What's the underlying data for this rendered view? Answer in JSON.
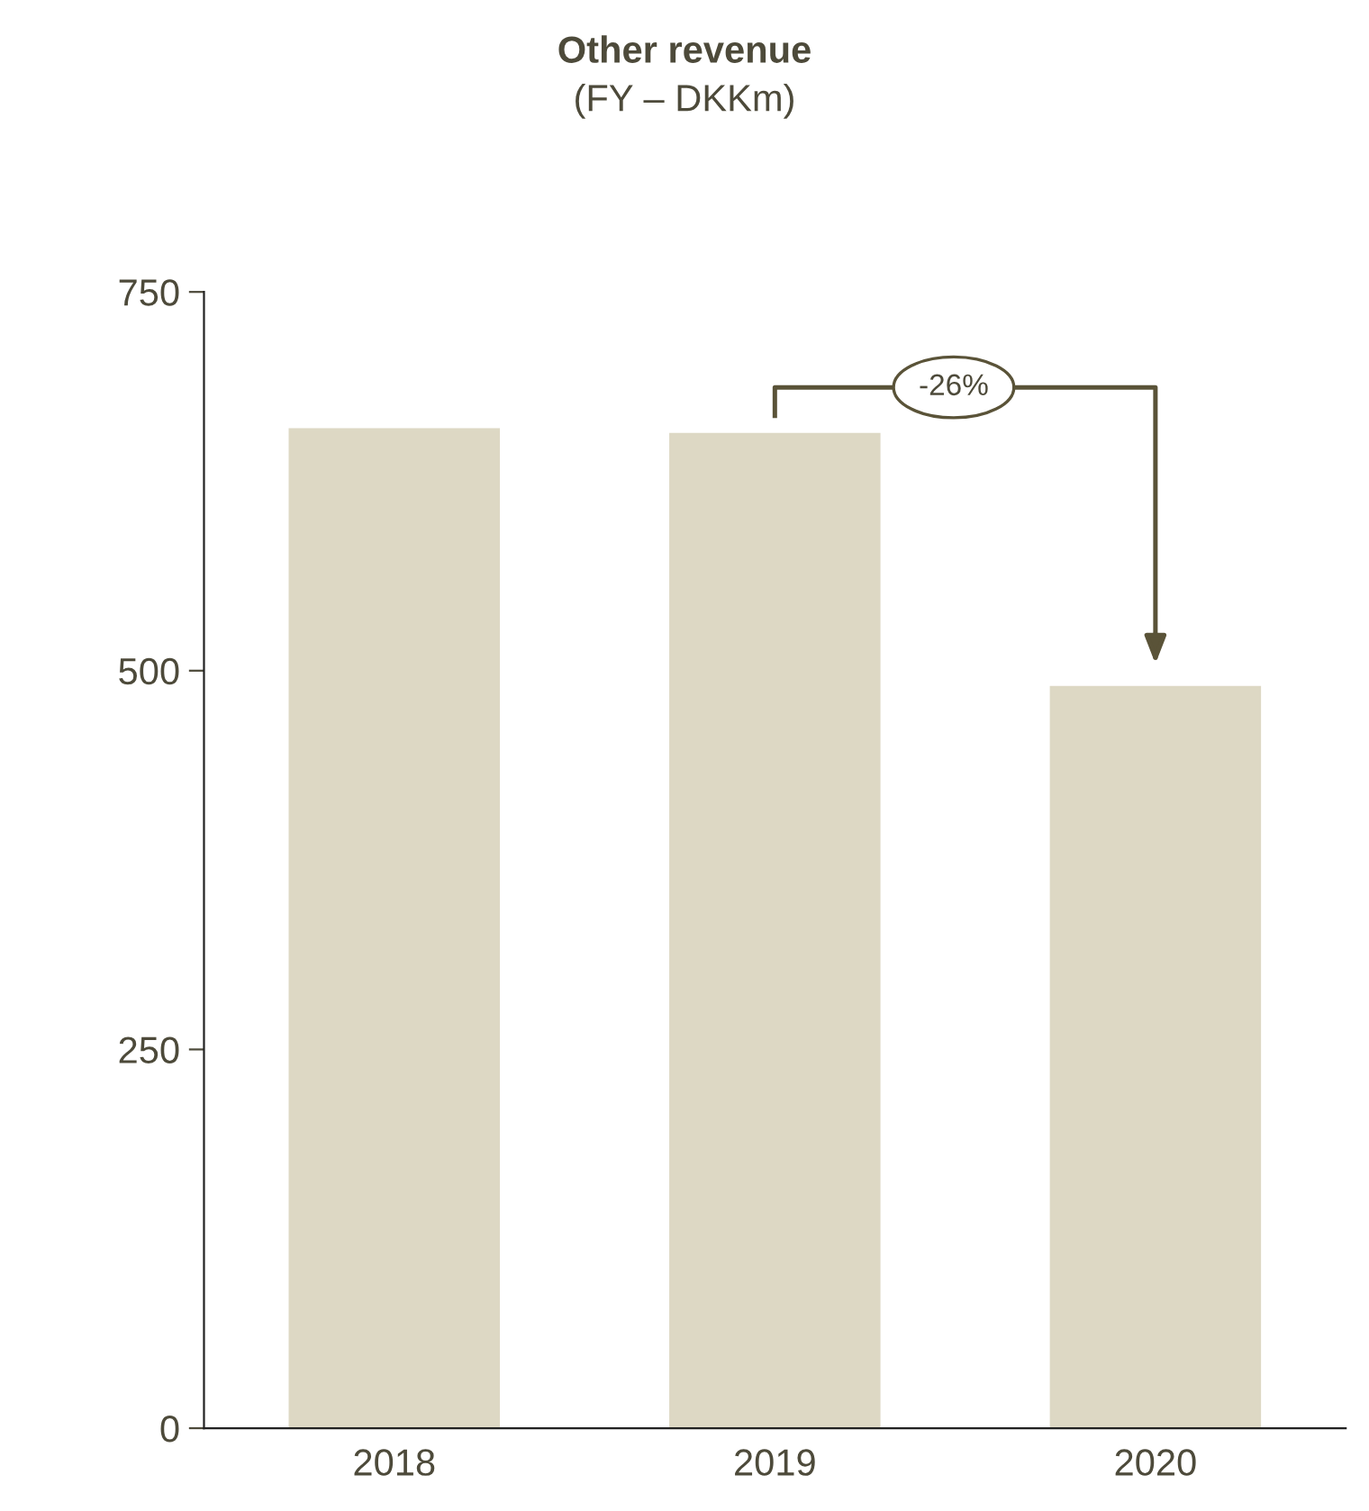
{
  "chart_data": {
    "type": "bar",
    "title": "Other revenue",
    "subtitle": "(FY – DKKm)",
    "categories": [
      "2018",
      "2019",
      "2020"
    ],
    "values": [
      660,
      657,
      490
    ],
    "color": "#ddd8c4",
    "ylim": [
      0,
      750
    ],
    "yticks": [
      0,
      250,
      500,
      750
    ],
    "grid": false,
    "legend": false,
    "annotations": [
      "-26%"
    ]
  }
}
